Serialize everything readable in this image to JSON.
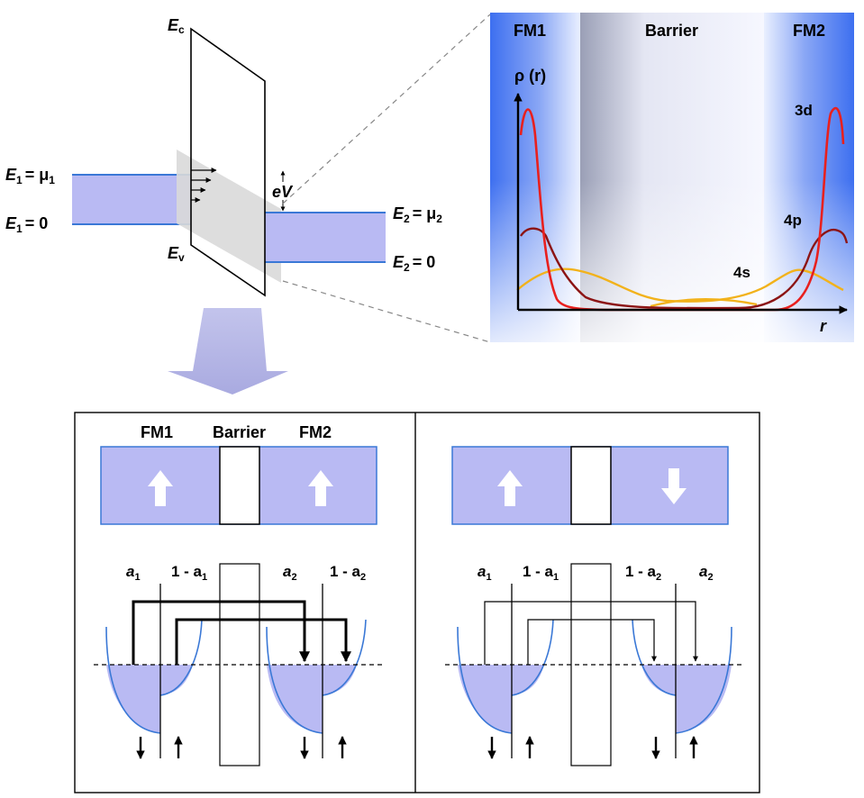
{
  "band_diagram": {
    "ec_label": "E",
    "ec_sub": "c",
    "ev_label": "E",
    "ev_sub": "v",
    "e1_mu_label": "E",
    "e1_mu_sub": "1",
    "e1_mu_rhs": "= μ",
    "e1_mu_rhs_sub": "1",
    "e1_zero_label": "E",
    "e1_zero_sub": "1",
    "e1_zero_rhs": "= 0",
    "e2_mu_label": "E",
    "e2_mu_sub": "2",
    "e2_mu_rhs": "= μ",
    "e2_mu_rhs_sub": "2",
    "e2_zero_label": "E",
    "e2_zero_sub": "2",
    "e2_zero_rhs": "= 0",
    "bias_label": "eV"
  },
  "density_plot": {
    "fm1_label": "FM1",
    "barrier_label": "Barrier",
    "fm2_label": "FM2",
    "y_label": "ρ (r)",
    "x_label": "r",
    "orbital_3d": "3d",
    "orbital_4p": "4p",
    "orbital_4s": "4s"
  },
  "parallel_panel": {
    "fm1_label": "FM1",
    "barrier_label": "Barrier",
    "fm2_label": "FM2",
    "a1_label": "a",
    "a1_sub": "1",
    "one_minus_a1_label": "1 - a",
    "one_minus_a1_sub": "1",
    "a2_label": "a",
    "a2_sub": "2",
    "one_minus_a2_label": "1 - a",
    "one_minus_a2_sub": "2"
  },
  "antiparallel_panel": {
    "a1_label": "a",
    "a1_sub": "1",
    "one_minus_a1_label": "1 - a",
    "one_minus_a1_sub": "1",
    "one_minus_a2_label": "1 - a",
    "one_minus_a2_sub": "2",
    "a2_label": "a",
    "a2_sub": "2"
  },
  "colors": {
    "band_fill": "#b9baf3",
    "band_edge": "#3a78d6",
    "barrier_shadow": "#d9d9d9",
    "curve_3d": "#e8201e",
    "curve_4p": "#8c1414",
    "curve_4s": "#f2b21b",
    "fm_blue": "#3d6ff0"
  }
}
